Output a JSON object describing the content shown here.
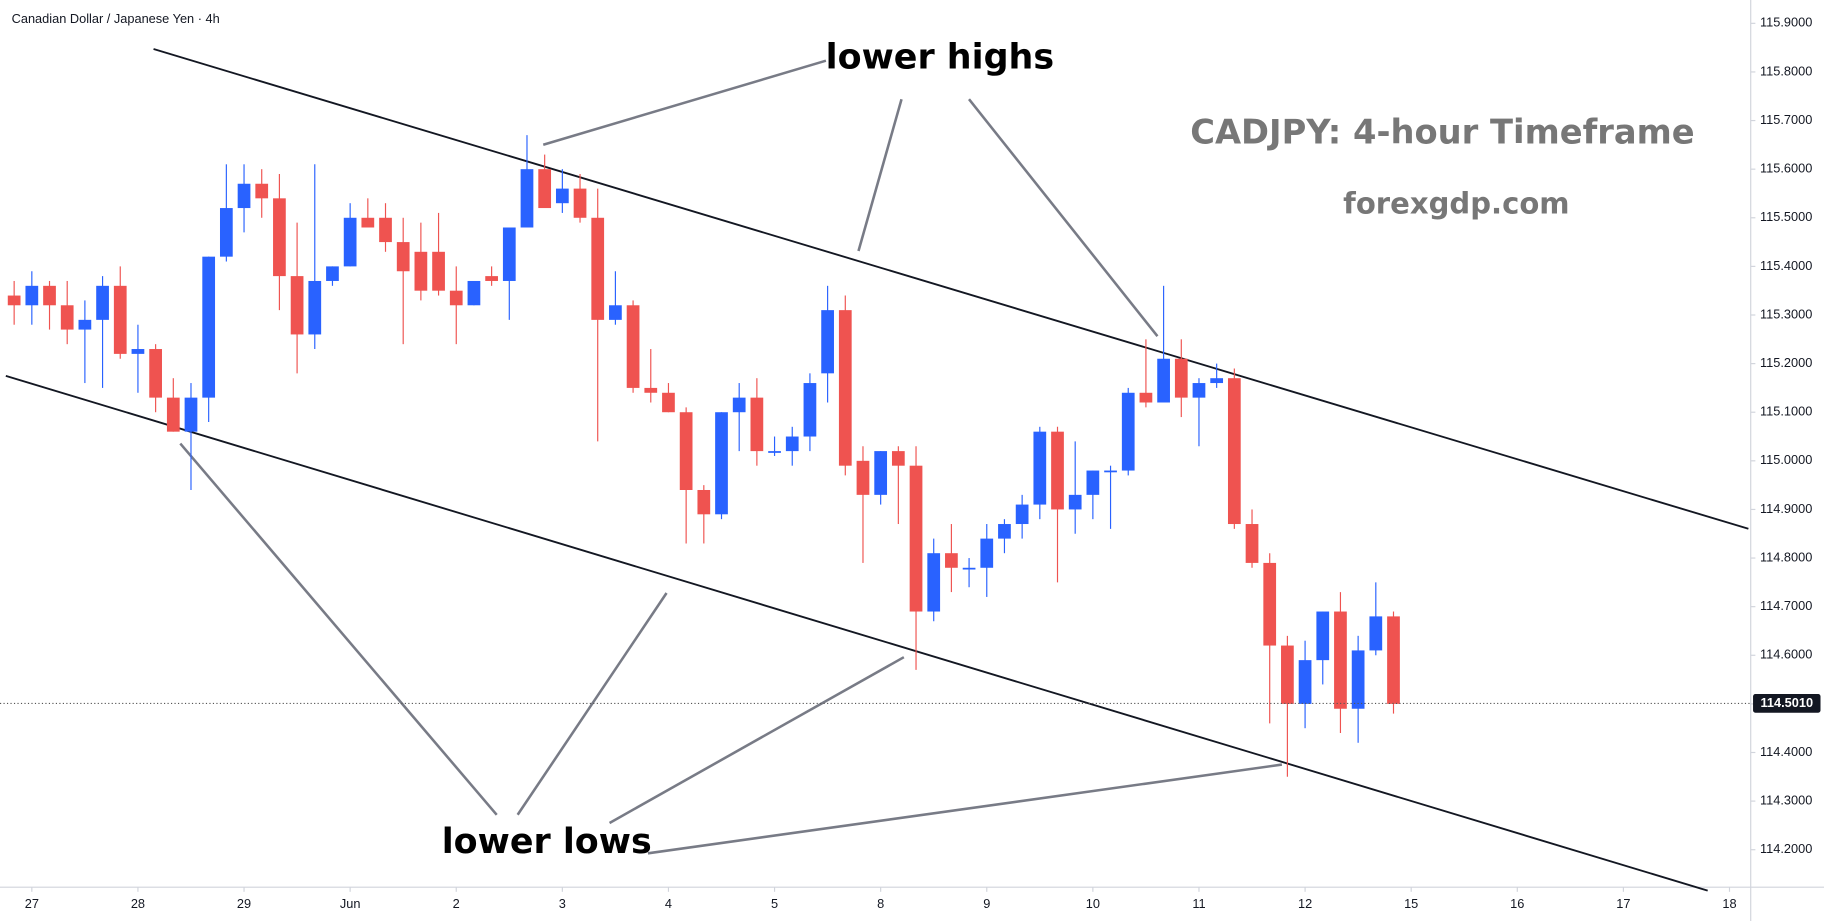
{
  "chart_data": {
    "type": "candlestick",
    "title": "Canadian Dollar / Japanese Yen · 4h",
    "annotations": [
      "lower highs",
      "lower lows",
      "CADJPY: 4-hour Timeframe",
      "forexgdp.com"
    ],
    "up_color": "#2962ff",
    "down_color": "#ef5350",
    "open": [
      115.34,
      115.32,
      115.36,
      115.32,
      115.27,
      115.29,
      115.36,
      115.22,
      115.23,
      115.13,
      115.06,
      115.13,
      115.42,
      115.52,
      115.57,
      115.54,
      115.38,
      115.26,
      115.37,
      115.4,
      115.5,
      115.5,
      115.45,
      115.43,
      115.43,
      115.35,
      115.32,
      115.38,
      115.37,
      115.48,
      115.6,
      115.53,
      115.56,
      115.5,
      115.29,
      115.32,
      115.15,
      115.14,
      115.1,
      114.94,
      114.89,
      115.1,
      115.13,
      115.02,
      115.02,
      115.05,
      115.18,
      115.31,
      115.0,
      114.93,
      115.02,
      114.99,
      114.69,
      114.81,
      114.78,
      114.78,
      114.84,
      114.87,
      114.91,
      115.06,
      114.9,
      114.93,
      114.98,
      114.98,
      115.14,
      115.12,
      115.21,
      115.13,
      115.16,
      115.17,
      114.87,
      114.79,
      114.62,
      114.5,
      114.59,
      114.69,
      114.49,
      114.61,
      114.68
    ],
    "high": [
      115.37,
      115.39,
      115.37,
      115.37,
      115.33,
      115.38,
      115.4,
      115.28,
      115.24,
      115.17,
      115.16,
      115.42,
      115.61,
      115.61,
      115.6,
      115.59,
      115.49,
      115.61,
      115.4,
      115.53,
      115.54,
      115.53,
      115.5,
      115.49,
      115.51,
      115.4,
      115.36,
      115.4,
      115.48,
      115.67,
      115.63,
      115.6,
      115.59,
      115.56,
      115.39,
      115.33,
      115.23,
      115.16,
      115.11,
      114.95,
      115.1,
      115.16,
      115.17,
      115.05,
      115.07,
      115.18,
      115.36,
      115.34,
      115.03,
      115.02,
      115.03,
      115.03,
      114.84,
      114.87,
      114.8,
      114.87,
      114.88,
      114.93,
      115.07,
      115.07,
      115.04,
      114.98,
      114.99,
      115.15,
      115.25,
      115.36,
      115.25,
      115.17,
      115.2,
      115.19,
      114.9,
      114.81,
      114.64,
      114.63,
      114.69,
      114.73,
      114.64,
      114.75,
      114.69
    ],
    "low": [
      115.28,
      115.28,
      115.27,
      115.24,
      115.16,
      115.15,
      115.21,
      115.14,
      115.1,
      115.06,
      114.94,
      115.08,
      115.41,
      115.47,
      115.5,
      115.31,
      115.18,
      115.23,
      115.36,
      115.4,
      115.48,
      115.43,
      115.24,
      115.33,
      115.34,
      115.24,
      115.32,
      115.36,
      115.29,
      115.48,
      115.53,
      115.51,
      115.49,
      115.04,
      115.28,
      115.14,
      115.12,
      115.1,
      114.83,
      114.83,
      114.88,
      115.02,
      114.99,
      115.01,
      114.99,
      115.02,
      115.12,
      114.97,
      114.79,
      114.91,
      114.87,
      114.57,
      114.67,
      114.73,
      114.74,
      114.72,
      114.81,
      114.84,
      114.88,
      114.75,
      114.85,
      114.88,
      114.86,
      114.97,
      115.11,
      115.12,
      115.09,
      115.03,
      115.15,
      114.86,
      114.78,
      114.46,
      114.35,
      114.45,
      114.54,
      114.44,
      114.42,
      114.6,
      114.48
    ],
    "close": [
      115.32,
      115.36,
      115.32,
      115.27,
      115.29,
      115.36,
      115.22,
      115.23,
      115.13,
      115.06,
      115.13,
      115.42,
      115.52,
      115.57,
      115.54,
      115.38,
      115.26,
      115.37,
      115.4,
      115.5,
      115.48,
      115.45,
      115.39,
      115.35,
      115.35,
      115.32,
      115.37,
      115.37,
      115.48,
      115.6,
      115.52,
      115.56,
      115.5,
      115.29,
      115.32,
      115.15,
      115.14,
      115.1,
      114.94,
      114.89,
      115.1,
      115.13,
      115.02,
      115.02,
      115.05,
      115.16,
      115.31,
      114.99,
      114.93,
      115.02,
      114.99,
      114.69,
      114.81,
      114.78,
      114.78,
      114.84,
      114.87,
      114.91,
      115.06,
      114.9,
      114.93,
      114.98,
      114.98,
      115.14,
      115.12,
      115.21,
      115.13,
      115.16,
      115.17,
      114.87,
      114.79,
      114.62,
      114.5,
      114.59,
      114.69,
      114.49,
      114.61,
      114.68,
      114.5
    ],
    "last_price": {
      "value": 114.501,
      "label": "114.5010"
    },
    "ylim": [
      114.123,
      115.948
    ],
    "yticks": [
      {
        "value": 114.2,
        "label": "114.2000"
      },
      {
        "value": 114.3,
        "label": "114.3000"
      },
      {
        "value": 114.4,
        "label": "114.4000"
      },
      {
        "value": 114.5,
        "label": "114.5000"
      },
      {
        "value": 114.6,
        "label": "114.6000"
      },
      {
        "value": 114.7,
        "label": "114.7000"
      },
      {
        "value": 114.8,
        "label": "114.8000"
      },
      {
        "value": 114.9,
        "label": "114.9000"
      },
      {
        "value": 115,
        "label": "115.0000"
      },
      {
        "value": 115.1,
        "label": "115.1000"
      },
      {
        "value": 115.2,
        "label": "115.2000"
      },
      {
        "value": 115.3,
        "label": "115.3000"
      },
      {
        "value": 115.4,
        "label": "115.4000"
      },
      {
        "value": 115.5,
        "label": "115.5000"
      },
      {
        "value": 115.6,
        "label": "115.6000"
      },
      {
        "value": 115.7,
        "label": "115.7000"
      },
      {
        "value": 115.8,
        "label": "115.8000"
      },
      {
        "value": 115.9,
        "label": "115.9000"
      }
    ],
    "xlim": [
      -0.8,
      98.2
    ],
    "xticks": [
      {
        "value": 1,
        "label": "27"
      },
      {
        "value": 7,
        "label": "28"
      },
      {
        "value": 13,
        "label": "29"
      },
      {
        "value": 19,
        "label": "Jun"
      },
      {
        "value": 25,
        "label": "2"
      },
      {
        "value": 31,
        "label": "3"
      },
      {
        "value": 37,
        "label": "4"
      },
      {
        "value": 43,
        "label": "5"
      },
      {
        "value": 49,
        "label": "8"
      },
      {
        "value": 55,
        "label": "9"
      },
      {
        "value": 61,
        "label": "10"
      },
      {
        "value": 67,
        "label": "11"
      },
      {
        "value": 73,
        "label": "12"
      },
      {
        "value": 79,
        "label": "15"
      },
      {
        "value": 85,
        "label": "16"
      },
      {
        "value": 91,
        "label": "17"
      },
      {
        "value": 97,
        "label": "18"
      }
    ]
  }
}
